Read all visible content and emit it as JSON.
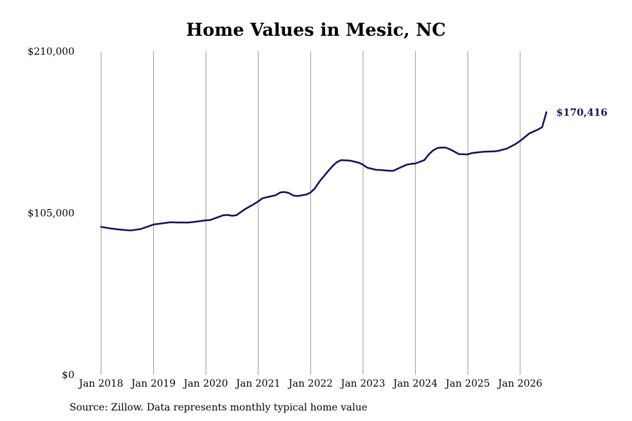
{
  "chart_data": {
    "type": "line",
    "title": "Home Values in Mesic, NC",
    "xlabel": "",
    "ylabel": "",
    "ylim": [
      0,
      210000
    ],
    "y_ticks": [
      "$0",
      "$105,000",
      "$210,000"
    ],
    "y_tick_values": [
      0,
      105000,
      210000
    ],
    "x_ticks": [
      "Jan 2018",
      "Jan 2019",
      "Jan 2020",
      "Jan 2021",
      "Jan 2022",
      "Jan 2023",
      "Jan 2024",
      "Jan 2025",
      "Jan 2026"
    ],
    "x_tick_values": [
      2018.0,
      2019.0,
      2020.0,
      2021.0,
      2022.0,
      2023.0,
      2024.0,
      2025.0,
      2026.0
    ],
    "xlim": [
      2018.0,
      2026.5
    ],
    "grid": "vertical",
    "series": [
      {
        "line_color": "#14145e",
        "end_label": "$170,416",
        "points": [
          [
            2018.0,
            96000
          ],
          [
            2018.17,
            95000
          ],
          [
            2018.33,
            94300
          ],
          [
            2018.5,
            93800
          ],
          [
            2018.58,
            93700
          ],
          [
            2018.75,
            94500
          ],
          [
            2018.92,
            96500
          ],
          [
            2019.0,
            97500
          ],
          [
            2019.17,
            98300
          ],
          [
            2019.33,
            99000
          ],
          [
            2019.5,
            98800
          ],
          [
            2019.67,
            98800
          ],
          [
            2019.83,
            99400
          ],
          [
            2020.0,
            100200
          ],
          [
            2020.08,
            100400
          ],
          [
            2020.17,
            101500
          ],
          [
            2020.33,
            103500
          ],
          [
            2020.42,
            103700
          ],
          [
            2020.5,
            103200
          ],
          [
            2020.58,
            103500
          ],
          [
            2020.75,
            107500
          ],
          [
            2020.92,
            110800
          ],
          [
            2021.0,
            112500
          ],
          [
            2021.08,
            114500
          ],
          [
            2021.17,
            115300
          ],
          [
            2021.33,
            116500
          ],
          [
            2021.42,
            118300
          ],
          [
            2021.5,
            118600
          ],
          [
            2021.58,
            118000
          ],
          [
            2021.67,
            116300
          ],
          [
            2021.75,
            116000
          ],
          [
            2021.92,
            117000
          ],
          [
            2022.0,
            118300
          ],
          [
            2022.08,
            121000
          ],
          [
            2022.17,
            125500
          ],
          [
            2022.33,
            132000
          ],
          [
            2022.42,
            135500
          ],
          [
            2022.5,
            138000
          ],
          [
            2022.58,
            139300
          ],
          [
            2022.75,
            139000
          ],
          [
            2022.92,
            137600
          ],
          [
            2023.0,
            136300
          ],
          [
            2023.08,
            134400
          ],
          [
            2023.25,
            133000
          ],
          [
            2023.33,
            132900
          ],
          [
            2023.5,
            132400
          ],
          [
            2023.58,
            132400
          ],
          [
            2023.67,
            133900
          ],
          [
            2023.83,
            136300
          ],
          [
            2023.92,
            136900
          ],
          [
            2024.0,
            137100
          ],
          [
            2024.17,
            139300
          ],
          [
            2024.25,
            142800
          ],
          [
            2024.33,
            145400
          ],
          [
            2024.42,
            147200
          ],
          [
            2024.5,
            147500
          ],
          [
            2024.58,
            147400
          ],
          [
            2024.67,
            146200
          ],
          [
            2024.83,
            143200
          ],
          [
            2025.0,
            143000
          ],
          [
            2025.08,
            143900
          ],
          [
            2025.25,
            144600
          ],
          [
            2025.33,
            144800
          ],
          [
            2025.5,
            145000
          ],
          [
            2025.58,
            145300
          ],
          [
            2025.75,
            146800
          ],
          [
            2025.92,
            149900
          ],
          [
            2026.0,
            151800
          ],
          [
            2026.08,
            154000
          ],
          [
            2026.17,
            156500
          ],
          [
            2026.25,
            157800
          ],
          [
            2026.33,
            159000
          ],
          [
            2026.42,
            160700
          ],
          [
            2026.5,
            170416
          ]
        ]
      }
    ]
  },
  "source_text": "Source: Zillow. Data represents monthly typical home value"
}
